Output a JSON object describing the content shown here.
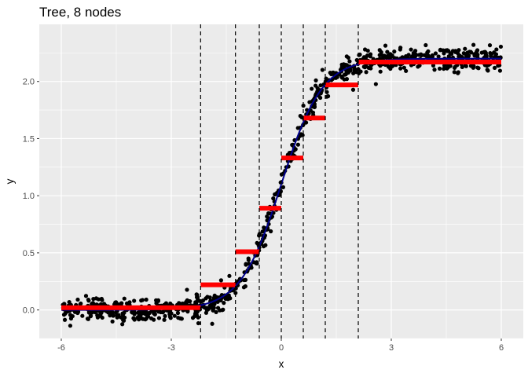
{
  "chart_data": {
    "type": "scatter",
    "title": "Tree, 8 nodes",
    "xlabel": "x",
    "ylabel": "y",
    "xlim": [
      -6.6,
      6.6
    ],
    "ylim": [
      -0.25,
      2.5
    ],
    "x_ticks": [
      {
        "value": -6,
        "label": "-6"
      },
      {
        "value": -3,
        "label": "-3"
      },
      {
        "value": 0,
        "label": "0"
      },
      {
        "value": 3,
        "label": "3"
      },
      {
        "value": 6,
        "label": "6"
      }
    ],
    "y_ticks": [
      {
        "value": 0.0,
        "label": "0.0"
      },
      {
        "value": 0.5,
        "label": "0.5"
      },
      {
        "value": 1.0,
        "label": "1.0"
      },
      {
        "value": 1.5,
        "label": "1.5"
      },
      {
        "value": 2.0,
        "label": "2.0"
      }
    ],
    "grid": true,
    "points": {
      "x_range": [
        -6,
        6
      ],
      "count": 900,
      "noise_sd": 0.05,
      "function": "logistic: y = 2.2 / (1 + exp(-1.8 * x))",
      "color": "#000000"
    },
    "true_curve": {
      "function": "logistic: y = 2.2 / (1 + exp(-1.8 * x))",
      "color": "#00008b"
    },
    "splits": [
      -2.2,
      -1.25,
      -0.6,
      0.0,
      0.6,
      1.2,
      2.1
    ],
    "split_color": "#000000",
    "segments": [
      {
        "x0": -6.0,
        "x1": -2.2,
        "y": 0.02
      },
      {
        "x0": -2.2,
        "x1": -1.25,
        "y": 0.22
      },
      {
        "x0": -1.25,
        "x1": -0.6,
        "y": 0.51
      },
      {
        "x0": -0.6,
        "x1": 0.0,
        "y": 0.89
      },
      {
        "x0": 0.0,
        "x1": 0.6,
        "y": 1.33
      },
      {
        "x0": 0.6,
        "x1": 1.2,
        "y": 1.68
      },
      {
        "x0": 1.2,
        "x1": 2.1,
        "y": 1.97
      },
      {
        "x0": 2.1,
        "x1": 6.0,
        "y": 2.17
      }
    ],
    "segment_color": "#ff0000",
    "panel_background": "#ebebeb",
    "grid_color": "#ffffff"
  }
}
